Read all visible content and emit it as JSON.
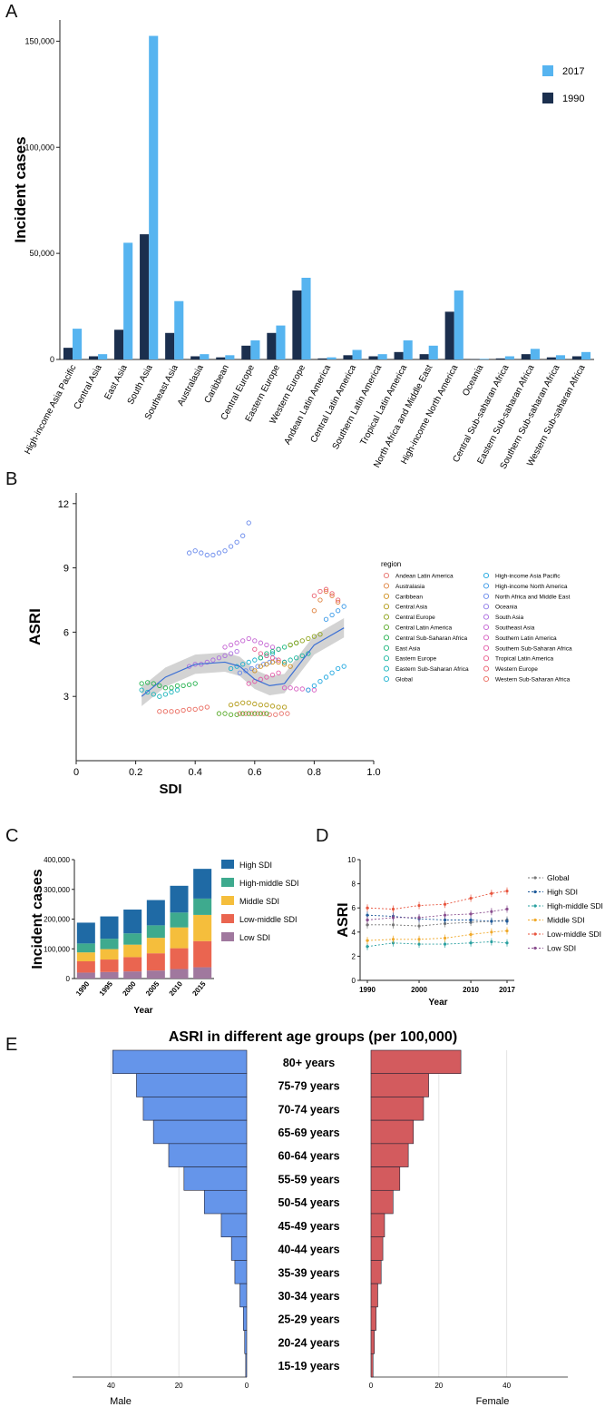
{
  "panels": {
    "a": "A",
    "b": "B",
    "c": "C",
    "d": "D",
    "e": "E"
  },
  "colors": {
    "bar2017": "#56b4f0",
    "bar1990": "#1b2f4e",
    "highSDI": "#1f6aa5",
    "highMiddleSDI": "#3eaa8e",
    "middleSDI": "#f5be3c",
    "lowMiddleSDI": "#ea6550",
    "lowSDI": "#a0789e",
    "male": "#6595ea",
    "female": "#d35b5e",
    "loess": "#3b6fd4",
    "band": "#c8c8c8"
  },
  "chart_data": [
    {
      "id": "A",
      "type": "bar",
      "ylabel": "Incident cases",
      "ylim": [
        0,
        160000
      ],
      "yticks": [
        0,
        50000,
        100000,
        150000
      ],
      "yticklabels": [
        "0",
        "50,000",
        "100,000",
        "150,000"
      ],
      "legend": [
        "2017",
        "1990"
      ],
      "categories": [
        "High-income Asia Pacific",
        "Central Asia",
        "East Asia",
        "South Asia",
        "Southeast Asia",
        "Australasia",
        "Caribbean",
        "Central Europe",
        "Eastern Europe",
        "Western Europe",
        "Andean Latin America",
        "Central Latin America",
        "Southern Latin America",
        "Tropical Latin America",
        "North Africa and Middle East",
        "High-income North America",
        "Oceania",
        "Central Sub-saharan Africa",
        "Eastern Sub-saharan Africa",
        "Southern Sub-saharan Africa",
        "Western Sub-saharan Africa"
      ],
      "series": [
        {
          "name": "1990",
          "values": [
            5500,
            1500,
            14000,
            59000,
            12500,
            1500,
            1000,
            6500,
            12500,
            32500,
            500,
            2000,
            1500,
            3500,
            2500,
            22500,
            150,
            500,
            2500,
            1000,
            1500
          ]
        },
        {
          "name": "2017",
          "values": [
            14500,
            2500,
            55000,
            152500,
            27500,
            2500,
            2000,
            9000,
            16000,
            38500,
            1000,
            4500,
            2500,
            9000,
            6500,
            32500,
            300,
            1500,
            5000,
            2000,
            3500
          ]
        }
      ]
    },
    {
      "id": "B",
      "type": "scatter",
      "xlabel": "SDI",
      "ylabel": "ASRI",
      "xlim": [
        0,
        1
      ],
      "ylim": [
        0,
        12.5
      ],
      "xticks": [
        0,
        0.2,
        0.4,
        0.6,
        0.8,
        1.0
      ],
      "xticklabels": [
        "0",
        "0.2",
        "0.4",
        "0.6",
        "0.8",
        "1.0"
      ],
      "yticks": [
        3,
        6,
        9,
        12
      ],
      "yticklabels": [
        "3",
        "6",
        "9",
        "12"
      ],
      "legend_title": "region",
      "legend": [
        {
          "name": "Andean Latin America",
          "color": "#e8736b"
        },
        {
          "name": "Australasia",
          "color": "#e0833f"
        },
        {
          "name": "Caribbean",
          "color": "#cf8f1e"
        },
        {
          "name": "Central Asia",
          "color": "#b29a14"
        },
        {
          "name": "Central Europe",
          "color": "#8ea31a"
        },
        {
          "name": "Central Latin America",
          "color": "#5aab2a"
        },
        {
          "name": "Central Sub-Saharan Africa",
          "color": "#22b14c"
        },
        {
          "name": "East Asia",
          "color": "#1ab67a"
        },
        {
          "name": "Eastern Europe",
          "color": "#1ab79e"
        },
        {
          "name": "Eastern Sub-Saharan Africa",
          "color": "#18b4ba"
        },
        {
          "name": "Global",
          "color": "#1ab0cf"
        },
        {
          "name": "High-income Asia Pacific",
          "color": "#1fa7e0"
        },
        {
          "name": "High-income North America",
          "color": "#3b9ae8"
        },
        {
          "name": "North Africa and Middle East",
          "color": "#6889ec"
        },
        {
          "name": "Oceania",
          "color": "#8d7ae9"
        },
        {
          "name": "South Asia",
          "color": "#ac6ce0"
        },
        {
          "name": "Southeast Asia",
          "color": "#c463d3"
        },
        {
          "name": "Southern Latin America",
          "color": "#d65dc0"
        },
        {
          "name": "Southern Sub-Saharan Africa",
          "color": "#e25aa8"
        },
        {
          "name": "Tropical Latin America",
          "color": "#e85d8d"
        },
        {
          "name": "Western Europe",
          "color": "#ea6473"
        },
        {
          "name": "Western Sub-Saharan Africa",
          "color": "#ea6a5e"
        }
      ],
      "series": [
        {
          "name": "Oceania",
          "color": "#6889ec",
          "x": [
            0.38,
            0.4,
            0.42,
            0.44,
            0.46,
            0.48,
            0.5,
            0.52,
            0.54,
            0.56,
            0.58
          ],
          "y": [
            9.7,
            9.8,
            9.7,
            9.6,
            9.6,
            9.7,
            9.8,
            10.0,
            10.2,
            10.5,
            11.1
          ]
        },
        {
          "name": "Western Sub-Saharan Africa",
          "color": "#ea6a5e",
          "x": [
            0.28,
            0.3,
            0.32,
            0.34,
            0.36,
            0.38,
            0.4,
            0.42,
            0.44
          ],
          "y": [
            2.3,
            2.3,
            2.3,
            2.3,
            2.35,
            2.4,
            2.4,
            2.45,
            2.5
          ]
        },
        {
          "name": "Central Sub-Saharan Africa",
          "color": "#22b14c",
          "x": [
            0.22,
            0.24,
            0.26,
            0.28,
            0.3,
            0.32,
            0.34,
            0.36,
            0.38,
            0.4
          ],
          "y": [
            3.6,
            3.65,
            3.6,
            3.5,
            3.4,
            3.4,
            3.5,
            3.5,
            3.55,
            3.6
          ]
        },
        {
          "name": "Eastern Sub-Saharan Africa",
          "color": "#18b4ba",
          "x": [
            0.22,
            0.24,
            0.26,
            0.28,
            0.3,
            0.32,
            0.34
          ],
          "y": [
            3.3,
            3.2,
            3.1,
            3.0,
            3.1,
            3.2,
            3.3
          ]
        },
        {
          "name": "South Asia",
          "color": "#ac6ce0",
          "x": [
            0.38,
            0.4,
            0.42,
            0.44,
            0.46,
            0.48,
            0.5,
            0.52,
            0.54
          ],
          "y": [
            4.4,
            4.5,
            4.5,
            4.6,
            4.7,
            4.8,
            4.9,
            5.0,
            5.1
          ]
        },
        {
          "name": "Southeast Asia",
          "color": "#c463d3",
          "x": [
            0.5,
            0.52,
            0.54,
            0.56,
            0.58,
            0.6,
            0.62,
            0.64,
            0.66,
            0.68
          ],
          "y": [
            5.3,
            5.4,
            5.5,
            5.6,
            5.7,
            5.6,
            5.5,
            5.4,
            5.3,
            5.2
          ]
        },
        {
          "name": "Central Asia",
          "color": "#b29a14",
          "x": [
            0.52,
            0.54,
            0.56,
            0.58,
            0.6,
            0.62,
            0.64,
            0.66,
            0.68,
            0.7
          ],
          "y": [
            2.6,
            2.65,
            2.7,
            2.7,
            2.65,
            2.6,
            2.6,
            2.55,
            2.5,
            2.5
          ]
        },
        {
          "name": "Andean Latin America",
          "color": "#e8736b",
          "x": [
            0.55,
            0.57,
            0.59,
            0.61,
            0.63,
            0.65,
            0.67,
            0.69,
            0.71
          ],
          "y": [
            2.2,
            2.2,
            2.2,
            2.2,
            2.2,
            2.15,
            2.15,
            2.2,
            2.2
          ]
        },
        {
          "name": "Central Latin America",
          "color": "#5aab2a",
          "x": [
            0.48,
            0.5,
            0.52,
            0.54,
            0.56,
            0.58,
            0.6,
            0.62,
            0.64
          ],
          "y": [
            2.2,
            2.2,
            2.15,
            2.15,
            2.2,
            2.2,
            2.2,
            2.2,
            2.2
          ]
        },
        {
          "name": "Global",
          "color": "#1ab0cf",
          "x": [
            0.52,
            0.54,
            0.56,
            0.58,
            0.6,
            0.62,
            0.64,
            0.66
          ],
          "y": [
            4.3,
            4.4,
            4.5,
            4.6,
            4.7,
            4.8,
            4.9,
            5.0
          ]
        },
        {
          "name": "North Africa and Middle East",
          "color": "#6889ec",
          "x": [
            0.55,
            0.57,
            0.59,
            0.61,
            0.63,
            0.65,
            0.67
          ],
          "y": [
            4.1,
            4.2,
            4.3,
            4.4,
            4.5,
            4.6,
            4.7
          ]
        },
        {
          "name": "Caribbean",
          "color": "#cf8f1e",
          "x": [
            0.6,
            0.62,
            0.64,
            0.66,
            0.68,
            0.7,
            0.72
          ],
          "y": [
            4.2,
            4.4,
            4.5,
            4.6,
            4.6,
            4.5,
            4.4
          ]
        },
        {
          "name": "Tropical Latin America",
          "color": "#e85d8d",
          "x": [
            0.6,
            0.62,
            0.64,
            0.66,
            0.68,
            0.7
          ],
          "y": [
            5.2,
            5.0,
            4.9,
            4.8,
            4.7,
            4.6
          ]
        },
        {
          "name": "Southern Latin America",
          "color": "#d65dc0",
          "x": [
            0.7,
            0.72,
            0.74,
            0.76,
            0.78,
            0.8
          ],
          "y": [
            3.4,
            3.4,
            3.35,
            3.35,
            3.3,
            3.3
          ]
        },
        {
          "name": "East Asia",
          "color": "#1ab67a",
          "x": [
            0.62,
            0.64,
            0.66,
            0.68,
            0.7,
            0.72,
            0.74
          ],
          "y": [
            4.8,
            5.0,
            5.1,
            5.2,
            5.3,
            5.4,
            5.5
          ]
        },
        {
          "name": "Eastern Europe",
          "color": "#1ab79e",
          "x": [
            0.7,
            0.72,
            0.74,
            0.76,
            0.78
          ],
          "y": [
            4.6,
            4.7,
            4.8,
            4.9,
            5.0
          ]
        },
        {
          "name": "Central Europe",
          "color": "#8ea31a",
          "x": [
            0.72,
            0.74,
            0.76,
            0.78,
            0.8,
            0.82
          ],
          "y": [
            5.4,
            5.5,
            5.6,
            5.7,
            5.8,
            5.9
          ]
        },
        {
          "name": "Australasia",
          "color": "#e0833f",
          "x": [
            0.8,
            0.82,
            0.84,
            0.86,
            0.88
          ],
          "y": [
            7.0,
            7.5,
            7.9,
            7.7,
            7.4
          ]
        },
        {
          "name": "Western Europe",
          "color": "#ea6473",
          "x": [
            0.8,
            0.82,
            0.84,
            0.86,
            0.88
          ],
          "y": [
            7.7,
            7.9,
            8.0,
            7.8,
            7.5
          ]
        },
        {
          "name": "High-income Asia Pacific",
          "color": "#1fa7e0",
          "x": [
            0.78,
            0.8,
            0.82,
            0.84,
            0.86,
            0.88,
            0.9
          ],
          "y": [
            3.3,
            3.5,
            3.7,
            3.9,
            4.1,
            4.3,
            4.4
          ]
        },
        {
          "name": "High-income North America",
          "color": "#3b9ae8",
          "x": [
            0.84,
            0.86,
            0.88,
            0.9
          ],
          "y": [
            6.6,
            6.8,
            7.0,
            7.2
          ]
        },
        {
          "name": "Southern Sub-Saharan Africa",
          "color": "#e25aa8",
          "x": [
            0.58,
            0.6,
            0.62,
            0.64,
            0.66,
            0.68
          ],
          "y": [
            3.6,
            3.7,
            3.8,
            3.9,
            4.0,
            4.1
          ]
        }
      ],
      "smooth": {
        "x": [
          0.22,
          0.3,
          0.4,
          0.5,
          0.55,
          0.6,
          0.65,
          0.7,
          0.75,
          0.8,
          0.85,
          0.9
        ],
        "y": [
          3.0,
          3.9,
          4.5,
          4.6,
          4.4,
          3.8,
          3.5,
          3.6,
          4.5,
          5.4,
          5.8,
          6.2
        ]
      }
    },
    {
      "id": "C",
      "type": "bar",
      "stacked": true,
      "xlabel": "Year",
      "ylabel": "Incident cases",
      "ylim": [
        0,
        400000
      ],
      "yticks": [
        0,
        100000,
        200000,
        300000,
        400000
      ],
      "yticklabels": [
        "0",
        "100,000",
        "200,000",
        "300,000",
        "400,000"
      ],
      "categories": [
        "1990",
        "1995",
        "2000",
        "2005",
        "2010",
        "2015"
      ],
      "series": [
        {
          "name": "Low SDI",
          "values": [
            20000,
            22000,
            24000,
            27000,
            32000,
            38000
          ]
        },
        {
          "name": "Low-middle SDI",
          "values": [
            38000,
            42000,
            48000,
            58000,
            70000,
            88000
          ]
        },
        {
          "name": "Middle SDI",
          "values": [
            30000,
            35000,
            42000,
            52000,
            70000,
            88000
          ]
        },
        {
          "name": "High-middle SDI",
          "values": [
            30000,
            35000,
            38000,
            42000,
            50000,
            55000
          ]
        },
        {
          "name": "High SDI",
          "values": [
            70000,
            75000,
            80000,
            85000,
            90000,
            100000
          ]
        }
      ],
      "legend": [
        "High SDI",
        "High-middle SDI",
        "Middle SDI",
        "Low-middle SDI",
        "Low SDI"
      ]
    },
    {
      "id": "D",
      "type": "line",
      "xlabel": "Year",
      "ylabel": "ASRI",
      "ylim": [
        0,
        10
      ],
      "yticks": [
        0,
        2,
        4,
        6,
        8,
        10
      ],
      "yticklabels": [
        "0",
        "2",
        "4",
        "6",
        "8",
        "10"
      ],
      "x": [
        1990,
        1995,
        2000,
        2005,
        2010,
        2014,
        2017
      ],
      "xticks": [
        1990,
        2000,
        2010,
        2017
      ],
      "xticklabels": [
        "1990",
        "2000",
        "2010",
        "2017"
      ],
      "series": [
        {
          "name": "Global",
          "color": "#777777",
          "values": [
            4.6,
            4.6,
            4.5,
            4.7,
            4.8,
            4.9,
            5.0
          ]
        },
        {
          "name": "High SDI",
          "color": "#1f5a9a",
          "values": [
            5.4,
            5.3,
            5.1,
            5.0,
            5.0,
            4.9,
            4.9
          ]
        },
        {
          "name": "High-middle SDI",
          "color": "#2aa0a0",
          "values": [
            2.8,
            3.1,
            3.0,
            3.0,
            3.1,
            3.2,
            3.1
          ]
        },
        {
          "name": "Middle SDI",
          "color": "#f0a92a",
          "values": [
            3.3,
            3.4,
            3.4,
            3.5,
            3.8,
            4.0,
            4.1
          ]
        },
        {
          "name": "Low-middle SDI",
          "color": "#e8553e",
          "values": [
            6.0,
            5.9,
            6.2,
            6.3,
            6.8,
            7.2,
            7.4
          ]
        },
        {
          "name": "Low SDI",
          "color": "#8a4f8f",
          "values": [
            5.0,
            5.2,
            5.2,
            5.4,
            5.5,
            5.7,
            5.9
          ]
        }
      ]
    },
    {
      "id": "E",
      "type": "bar",
      "orientation": "butterfly",
      "title": "ASRI in different age groups (per 100,000)",
      "categories": [
        "80+ years",
        "75-79 years",
        "70-74 years",
        "65-69 years",
        "60-64 years",
        "55-59 years",
        "50-54 years",
        "45-49 years",
        "40-44 years",
        "35-39 years",
        "30-34 years",
        "25-29 years",
        "20-24 years",
        "15-19 years"
      ],
      "series": [
        {
          "name": "Male",
          "values": [
            39.5,
            32.5,
            30.5,
            27.5,
            23,
            18.5,
            12.5,
            7.5,
            4.5,
            3.5,
            2,
            1,
            0.6,
            0.3
          ]
        },
        {
          "name": "Female",
          "values": [
            26.5,
            17,
            15.5,
            12.5,
            11,
            8.5,
            6.5,
            4,
            3.5,
            3,
            2,
            1.5,
            1,
            0.6
          ]
        }
      ],
      "xlim": [
        0,
        50
      ],
      "xticks": [
        0,
        20,
        40
      ],
      "xticklabels": [
        "0",
        "20",
        "40"
      ],
      "xlabel_left": "Male",
      "xlabel_right": "Female"
    }
  ]
}
